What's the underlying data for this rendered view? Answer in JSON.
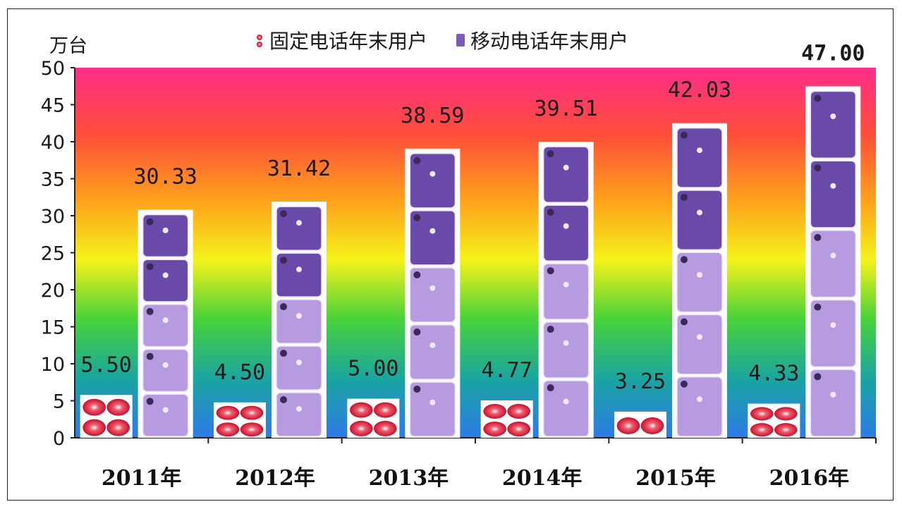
{
  "chart_data": {
    "type": "bar",
    "title": "",
    "xlabel": "",
    "ylabel": "万台",
    "categories": [
      "2011年",
      "2012年",
      "2013年",
      "2014年",
      "2015年",
      "2016年"
    ],
    "series": [
      {
        "name": "固定电话年末用户",
        "values": [
          5.5,
          4.5,
          5.0,
          4.77,
          3.25,
          4.33
        ],
        "labels": [
          "5.50",
          "4.50",
          "5.00",
          "4.77",
          "3.25",
          "4.33"
        ],
        "color": "#c8102e"
      },
      {
        "name": "移动电话年末用户",
        "values": [
          30.33,
          31.42,
          38.59,
          39.51,
          42.03,
          47.0
        ],
        "labels": [
          "30.33",
          "31.42",
          "38.59",
          "39.51",
          "42.03",
          "47.00"
        ],
        "color": "#7b5bb5"
      }
    ],
    "ylim": [
      0,
      50
    ],
    "yticks": [
      0,
      5,
      10,
      15,
      20,
      25,
      30,
      35,
      40,
      45,
      50
    ],
    "grid": false,
    "legend_position": "top",
    "background": "rainbow-gradient"
  }
}
